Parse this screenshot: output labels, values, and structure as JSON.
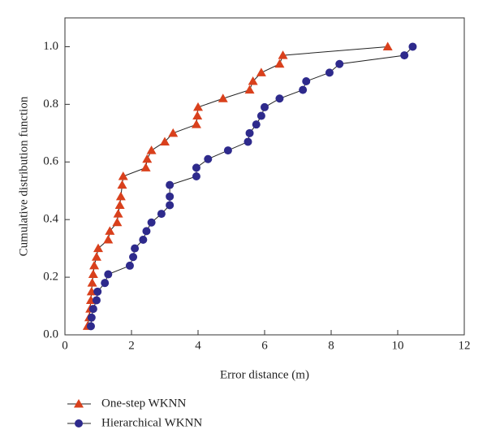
{
  "chart_data": {
    "type": "line",
    "xlabel": "Error distance (m)",
    "ylabel": "Cumulative distribution function",
    "xlim": [
      0,
      12
    ],
    "xticks": [
      0,
      2,
      4,
      6,
      8,
      10,
      12
    ],
    "ylim": [
      0,
      1.1
    ],
    "yticks": [
      {
        "value": 0,
        "label": "0.0"
      },
      {
        "value": 0.2,
        "label": "0.2"
      },
      {
        "value": 0.4,
        "label": "0.4"
      },
      {
        "value": 0.6,
        "label": "0.6"
      },
      {
        "value": 0.8,
        "label": "0.8"
      },
      {
        "value": 1,
        "label": "1.0"
      }
    ],
    "series": [
      {
        "name": "One-step WKNN",
        "color": "#d9401c",
        "marker": "triangle",
        "x": [
          0.68,
          0.73,
          0.76,
          0.78,
          0.8,
          0.82,
          0.85,
          0.88,
          0.95,
          1.0,
          1.3,
          1.35,
          1.57,
          1.6,
          1.65,
          1.68,
          1.72,
          1.75,
          2.43,
          2.47,
          2.6,
          3.0,
          3.25,
          3.95,
          3.98,
          4.0,
          4.75,
          5.55,
          5.65,
          5.9,
          6.45,
          6.55,
          9.7
        ],
        "values": [
          0.03,
          0.06,
          0.09,
          0.12,
          0.15,
          0.18,
          0.21,
          0.24,
          0.27,
          0.3,
          0.33,
          0.36,
          0.39,
          0.42,
          0.45,
          0.48,
          0.52,
          0.55,
          0.58,
          0.61,
          0.64,
          0.67,
          0.7,
          0.73,
          0.76,
          0.79,
          0.82,
          0.85,
          0.88,
          0.91,
          0.94,
          0.97,
          1.0
        ]
      },
      {
        "name": "Hierarchical WKNN",
        "color": "#2e2a8c",
        "marker": "circle",
        "x": [
          0.78,
          0.8,
          0.85,
          0.95,
          0.98,
          1.2,
          1.3,
          1.95,
          2.05,
          2.1,
          2.35,
          2.45,
          2.6,
          2.9,
          3.15,
          3.15,
          3.15,
          3.95,
          3.95,
          4.3,
          4.9,
          5.5,
          5.55,
          5.75,
          5.9,
          6.0,
          6.45,
          7.15,
          7.25,
          7.95,
          8.25,
          10.2,
          10.45
        ],
        "values": [
          0.03,
          0.06,
          0.09,
          0.12,
          0.15,
          0.18,
          0.21,
          0.24,
          0.27,
          0.3,
          0.33,
          0.36,
          0.39,
          0.42,
          0.45,
          0.48,
          0.52,
          0.55,
          0.58,
          0.61,
          0.64,
          0.67,
          0.7,
          0.73,
          0.76,
          0.79,
          0.82,
          0.85,
          0.88,
          0.91,
          0.94,
          0.97,
          1.0
        ]
      }
    ]
  }
}
